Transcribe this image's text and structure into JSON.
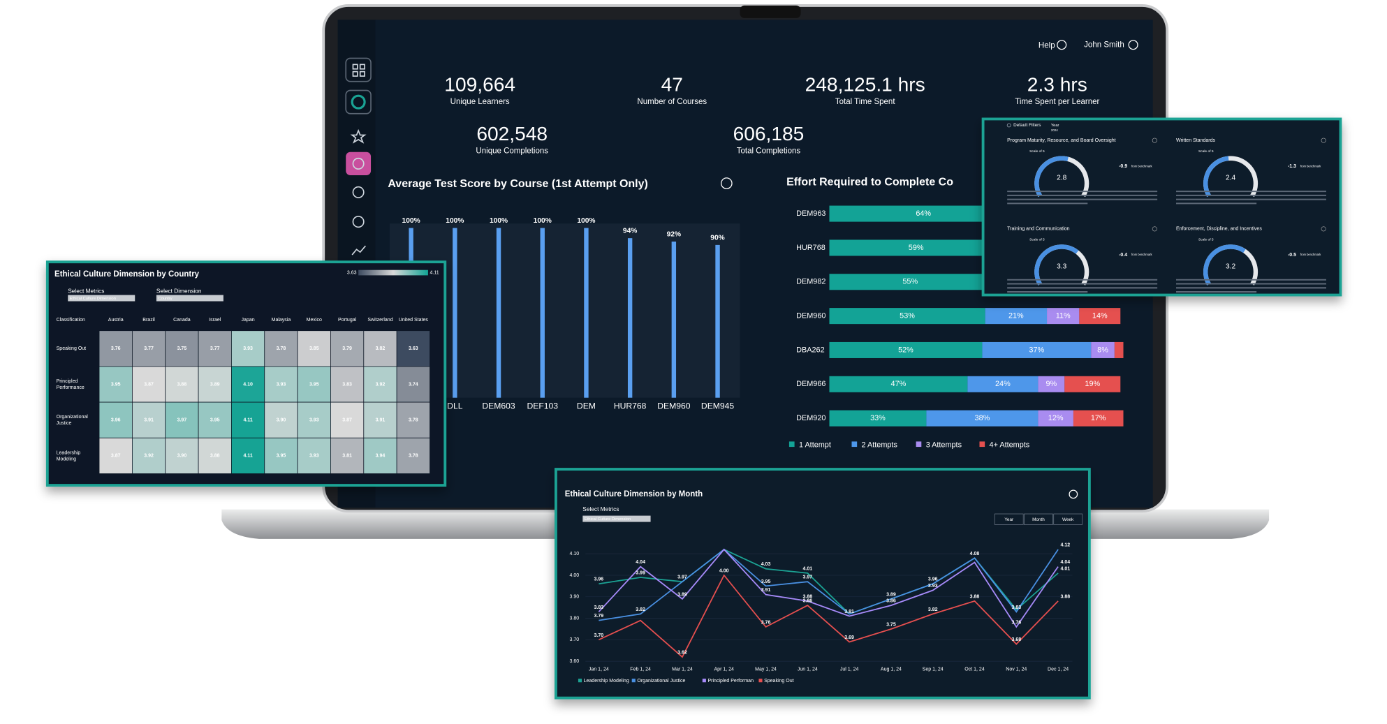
{
  "header": {
    "help": "Help",
    "user": "John Smith"
  },
  "kpis": [
    {
      "value": "109,664",
      "label": "Unique Learners"
    },
    {
      "value": "47",
      "label": "Number of Courses"
    },
    {
      "value": "248,125.1 hrs",
      "label": "Total Time Spent"
    },
    {
      "value": "2.3 hrs",
      "label": "Time Spent per Learner"
    },
    {
      "value": "602,548",
      "label": "Unique Completions"
    },
    {
      "value": "606,185",
      "label": "Total Completions"
    }
  ],
  "chart_data": [
    {
      "type": "bar",
      "title": "Average Test Score by Course (1st Attempt Only)",
      "categories": [
        null,
        "DLL",
        "DEM603",
        "DEF103",
        "DEM",
        "HUR768",
        "DEM960",
        "DEM945"
      ],
      "values": [
        100,
        100,
        100,
        100,
        100,
        94,
        92,
        90
      ],
      "value_labels": [
        "100%",
        "100%",
        "100%",
        "100%",
        "100%",
        "94%",
        "92%",
        "90%"
      ],
      "ylim": [
        0,
        100
      ],
      "color": "#5a9ff0"
    },
    {
      "type": "stacked_bar_h",
      "title": "Effort Required to Complete Co",
      "categories": [
        "DEM963",
        "HUR768",
        "DEM982",
        "DEM960",
        "DBA262",
        "DEM966",
        "DEM920"
      ],
      "xlim": [
        0,
        100
      ],
      "series": [
        {
          "name": "1 Attempt",
          "color": "#13a396",
          "values": [
            64,
            59,
            55,
            53,
            52,
            47,
            33
          ],
          "value_labels": [
            "64%",
            "59%",
            "55%",
            "53%",
            "52%",
            "47%",
            "33%"
          ]
        },
        {
          "name": "2 Attempts",
          "color": "#4e97ea",
          "values": [
            null,
            null,
            null,
            21,
            37,
            24,
            38
          ],
          "value_labels": [
            null,
            null,
            null,
            "21%",
            "37%",
            "24%",
            "38%"
          ]
        },
        {
          "name": "3 Attempts",
          "color": "#a98cf0",
          "values": [
            null,
            null,
            null,
            11,
            8,
            9,
            12
          ],
          "value_labels": [
            null,
            null,
            null,
            "11%",
            "8%",
            "9%",
            "12%"
          ]
        },
        {
          "name": "4+ Attempts",
          "color": "#e5504f",
          "values": [
            null,
            null,
            null,
            14,
            3,
            19,
            17
          ],
          "value_labels": [
            null,
            null,
            null,
            "14%",
            null,
            "19%",
            "17%"
          ]
        }
      ]
    },
    {
      "type": "heatmap",
      "title": "Ethical Culture Dimension by Country",
      "controls": [
        {
          "label": "Select Metrics",
          "value": "Ethical Culture Dimension"
        },
        {
          "label": "Select Dimension",
          "value": "Country"
        }
      ],
      "row_header": "Classification",
      "x": [
        "Austria",
        "Brazil",
        "Canada",
        "Israel",
        "Japan",
        "Malaysia",
        "Mexico",
        "Portugal",
        "Switzerland",
        "United States"
      ],
      "y": [
        "Speaking Out",
        "Principled Performance",
        "Organizational Justice",
        "Leadership Modeling"
      ],
      "values": [
        [
          3.76,
          3.77,
          3.75,
          3.77,
          3.93,
          3.78,
          3.85,
          3.79,
          3.82,
          3.63
        ],
        [
          3.95,
          3.87,
          3.88,
          3.89,
          4.1,
          3.93,
          3.95,
          3.83,
          3.92,
          3.74
        ],
        [
          3.96,
          3.91,
          3.97,
          3.95,
          4.11,
          3.9,
          3.93,
          3.87,
          3.91,
          3.78
        ],
        [
          3.87,
          3.92,
          3.9,
          3.88,
          4.11,
          3.95,
          3.93,
          3.81,
          3.94,
          3.78
        ]
      ],
      "value_labels": [
        [
          "3.76",
          "3.77",
          "3.75",
          "3.77",
          "3.93",
          "3.78",
          "3.85",
          "3.79",
          "3.82",
          "3.63"
        ],
        [
          "3.95",
          "3.87",
          "3.88",
          "3.89",
          "4.10",
          "3.93",
          "3.95",
          "3.83",
          "3.92",
          "3.74"
        ],
        [
          "3.96",
          "3.91",
          "3.97",
          "3.95",
          "4.11",
          "3.90",
          "3.93",
          "3.87",
          "3.91",
          "3.78"
        ],
        [
          "3.87",
          "3.92",
          "3.90",
          "3.88",
          "4.11",
          "3.95",
          "3.93",
          "3.81",
          "3.94",
          "3.78"
        ]
      ],
      "zlim": [
        3.63,
        4.11
      ],
      "colors": [
        "#3d4b60",
        "#d9d9d9",
        "#12a394"
      ]
    },
    {
      "type": "line",
      "title": "Ethical Culture Dimension by Month",
      "controls": [
        {
          "label": "Select Metrics",
          "value": "Ethical Culture Dimension"
        }
      ],
      "buttons": [
        "Year",
        "Month",
        "Week"
      ],
      "categories": [
        "Jan 1, 24",
        "Feb 1, 24",
        "Mar 1, 24",
        "Apr 1, 24",
        "May 1, 24",
        "Jun 1, 24",
        "Jul 1, 24",
        "Aug 1, 24",
        "Sep 1, 24",
        "Oct 1, 24",
        "Nov 1, 24",
        "Dec 1, 24"
      ],
      "ylim": [
        3.6,
        4.14
      ],
      "yticks": [
        {
          "value": 3.6,
          "label": "3.60"
        },
        {
          "value": 3.7,
          "label": "3.70"
        },
        {
          "value": 3.8,
          "label": "3.80"
        },
        {
          "value": 3.9,
          "label": "3.90"
        },
        {
          "value": 4.0,
          "label": "4.00"
        },
        {
          "value": 4.1,
          "label": "4.10"
        }
      ],
      "series": [
        {
          "name": "Leadership Modeling",
          "color": "#1aa394",
          "values": [
            3.96,
            3.99,
            3.97,
            4.12,
            4.03,
            4.01,
            3.82,
            3.89,
            3.96,
            4.08,
            3.84,
            4.01
          ],
          "value_labels": [
            "3.96",
            "3.99",
            "3.97",
            null,
            "4.03",
            "4.01",
            null,
            null,
            null,
            null,
            null,
            "4.01"
          ]
        },
        {
          "name": "Organizational Justice",
          "color": "#4a90e2",
          "values": [
            3.79,
            3.82,
            3.97,
            4.12,
            3.95,
            3.97,
            3.82,
            3.89,
            3.96,
            4.08,
            3.83,
            4.12
          ],
          "value_labels": [
            "3.79",
            "3.82",
            null,
            null,
            "3.95",
            "3.97",
            null,
            "3.89",
            "3.96",
            "4.08",
            "3.83",
            "4.12"
          ]
        },
        {
          "name": "Principled Performan",
          "color": "#a78bfa",
          "values": [
            3.83,
            4.04,
            3.89,
            4.12,
            3.91,
            3.88,
            3.81,
            3.86,
            3.93,
            4.06,
            3.76,
            4.04
          ],
          "value_labels": [
            "3.83",
            "4.04",
            "3.89",
            null,
            "3.91",
            "3.88",
            "3.81",
            "3.86",
            "3.93",
            null,
            "3.76",
            "4.04"
          ]
        },
        {
          "name": "Speaking Out",
          "color": "#e5504f",
          "values": [
            3.7,
            3.79,
            3.62,
            4.0,
            3.76,
            3.86,
            3.69,
            3.75,
            3.82,
            3.88,
            3.68,
            3.88
          ],
          "value_labels": [
            "3.70",
            null,
            "3.62",
            "4.00",
            "3.76",
            "3.86",
            "3.69",
            "3.75",
            "3.82",
            "3.88",
            "3.68",
            "3.88"
          ]
        }
      ]
    }
  ],
  "gauges": {
    "filters": "Default Filters",
    "year_label": "Year",
    "year": "2024",
    "range": [
      0,
      5
    ],
    "items": [
      {
        "title": "Program Maturity, Resource, and Board Oversight",
        "scale": "Scale of 5",
        "value": 2.8,
        "delta": -0.9,
        "from": "from benchmark"
      },
      {
        "title": "Written Standards",
        "scale": "Scale of 5",
        "value": 2.4,
        "delta": -1.3,
        "from": "from benchmark"
      },
      {
        "title": "Training and Communication",
        "scale": "Scale of 5",
        "value": 3.3,
        "delta": -0.4,
        "from": "from benchmark"
      },
      {
        "title": "Enforcement, Discipline, and Incentives",
        "scale": "Scale of 5",
        "value": 3.2,
        "delta": -0.5,
        "from": "from benchmark"
      }
    ]
  }
}
